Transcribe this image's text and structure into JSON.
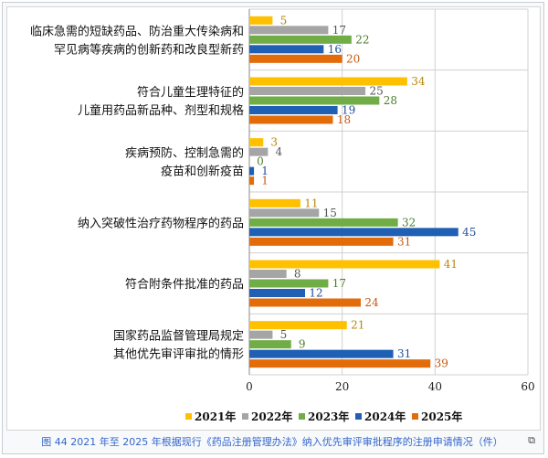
{
  "caption": "图 44 2021 年至 2025 年根据现行《药品注册管理办法》纳入优先审评审批程序的注册申请情况（件）",
  "chart_data": {
    "type": "bar",
    "orientation": "horizontal",
    "title": "",
    "xlabel": "",
    "ylabel": "",
    "xlim": [
      0,
      60
    ],
    "xticks": [
      0,
      20,
      40,
      60
    ],
    "grid": true,
    "legend_position": "bottom",
    "categories": [
      [
        "临床急需的短缺药品、防治重大传染病和",
        "罕见病等疾病的创新药和改良型新药"
      ],
      [
        "符合儿童生理特征的",
        "儿童用药品新品种、剂型和规格"
      ],
      [
        "疾病预防、控制急需的",
        "疫苗和创新疫苗"
      ],
      [
        "纳入突破性治疗药物程序的药品"
      ],
      [
        "符合附条件批准的药品"
      ],
      [
        "国家药品监督管理局规定",
        "其他优先审评审批的情形"
      ]
    ],
    "series": [
      {
        "name": "2021年",
        "color": "#ffc000",
        "values": [
          5,
          34,
          3,
          11,
          41,
          21
        ]
      },
      {
        "name": "2022年",
        "color": "#a5a5a5",
        "values": [
          17,
          25,
          4,
          15,
          8,
          5
        ]
      },
      {
        "name": "2023年",
        "color": "#70ad47",
        "values": [
          22,
          28,
          0,
          32,
          17,
          9
        ]
      },
      {
        "name": "2024年",
        "color": "#1f5fb4",
        "values": [
          16,
          19,
          1,
          45,
          12,
          31
        ]
      },
      {
        "name": "2025年",
        "color": "#e36c0a",
        "values": [
          20,
          18,
          1,
          31,
          24,
          39
        ]
      }
    ]
  },
  "colors": {
    "label_2021": "#b8860b",
    "label_2022": "#555555",
    "label_2023": "#4e7d2c",
    "label_2024": "#1f4f9a",
    "label_2025": "#c55a11"
  },
  "icons": {
    "expand": "expand-icon"
  }
}
